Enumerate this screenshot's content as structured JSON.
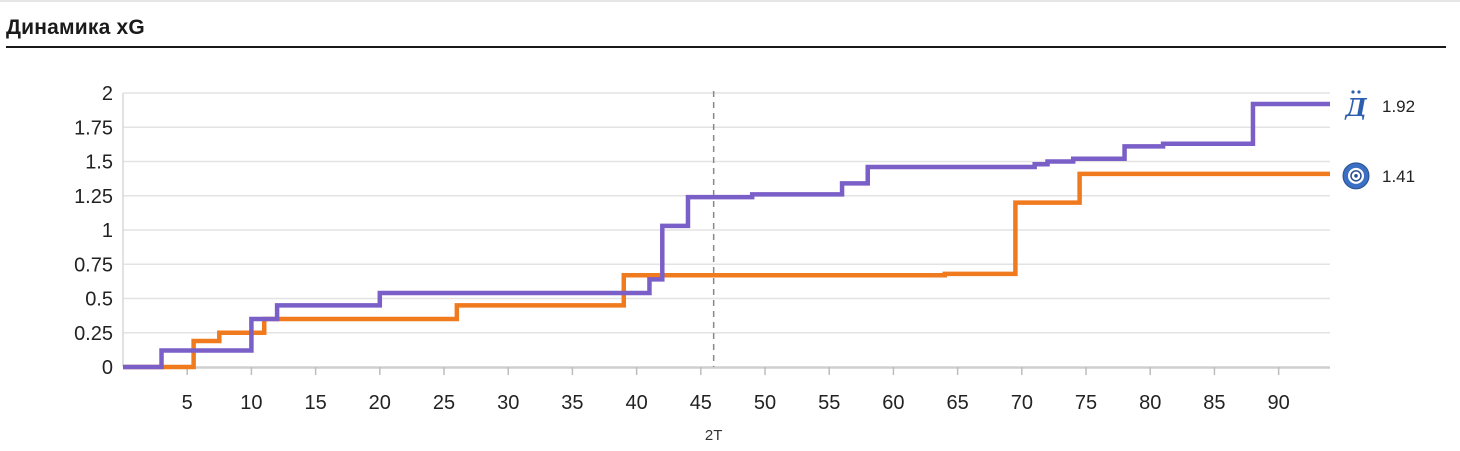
{
  "header": {
    "title": "Динамика xG"
  },
  "chart_data": {
    "type": "line",
    "step": true,
    "title": "Динамика xG",
    "xlabel": "",
    "ylabel": "",
    "xlim": [
      0,
      94
    ],
    "ylim": [
      0,
      2
    ],
    "x_ticks": [
      5,
      10,
      15,
      20,
      25,
      30,
      35,
      40,
      45,
      50,
      55,
      60,
      65,
      70,
      75,
      80,
      85,
      90
    ],
    "y_ticks": [
      0,
      0.25,
      0.5,
      0.75,
      1,
      1.25,
      1.5,
      1.75,
      2
    ],
    "y_tick_labels": [
      "0",
      "0.25",
      "0.5",
      "0.75",
      "1",
      "1.25",
      "1.5",
      "1.75",
      "2"
    ],
    "grid": {
      "horizontal": true,
      "vertical": false
    },
    "half_marker": {
      "x": 46,
      "label": "2T"
    },
    "series": [
      {
        "color": "#7b5fc8",
        "icon": "dynamo-logo-icon",
        "final_label": "1.92",
        "x": [
          0,
          3,
          10,
          12,
          20,
          41,
          42,
          44,
          49,
          56,
          58,
          71,
          72,
          74,
          78,
          81,
          88,
          94
        ],
        "y": [
          0,
          0.12,
          0.35,
          0.45,
          0.54,
          0.64,
          1.03,
          1.24,
          1.26,
          1.34,
          1.46,
          1.48,
          1.5,
          1.52,
          1.61,
          1.63,
          1.92,
          1.92
        ]
      },
      {
        "color": "#f07a1e",
        "icon": "round-club-logo-icon",
        "final_label": "1.41",
        "x": [
          0,
          5.5,
          7.5,
          11,
          26,
          39,
          64,
          69.5,
          74.5,
          94
        ],
        "y": [
          0,
          0.19,
          0.25,
          0.35,
          0.45,
          0.67,
          0.68,
          1.2,
          1.41,
          1.41
        ]
      }
    ]
  }
}
